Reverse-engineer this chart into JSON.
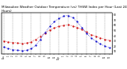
{
  "title": "Milwaukee Weather Outdoor Temperature (vs) THSW Index per Hour (Last 24 Hours)",
  "title_fontsize": 3.0,
  "background_color": "#ffffff",
  "grid_color": "#888888",
  "hours": [
    0,
    1,
    2,
    3,
    4,
    5,
    6,
    7,
    8,
    9,
    10,
    11,
    12,
    13,
    14,
    15,
    16,
    17,
    18,
    19,
    20,
    21,
    22,
    23
  ],
  "outdoor_temp": [
    30,
    28,
    27,
    26,
    25,
    26,
    28,
    33,
    39,
    45,
    51,
    55,
    58,
    60,
    61,
    59,
    56,
    52,
    47,
    42,
    39,
    36,
    33,
    31
  ],
  "thsw_index": [
    18,
    15,
    13,
    12,
    11,
    12,
    15,
    22,
    33,
    46,
    58,
    67,
    73,
    78,
    79,
    75,
    67,
    56,
    45,
    36,
    30,
    24,
    20,
    17
  ],
  "temp_color": "#cc0000",
  "thsw_color": "#0000cc",
  "markersize": 1.2,
  "linewidth": 0.5,
  "ylim": [
    5,
    85
  ],
  "yticks_right": [
    10,
    20,
    30,
    40,
    50,
    60,
    70,
    80
  ],
  "ytick_labels_right": [
    "10",
    "20",
    "30",
    "40",
    "50",
    "60",
    "70",
    "80"
  ],
  "xtick_labels": [
    "12a",
    "1",
    "2",
    "3",
    "4",
    "5",
    "6",
    "7",
    "8",
    "9",
    "10",
    "11",
    "12p",
    "1",
    "2",
    "3",
    "4",
    "5",
    "6",
    "7",
    "8",
    "9",
    "10",
    "11"
  ],
  "figwidth": 1.6,
  "figheight": 0.87,
  "dpi": 100
}
